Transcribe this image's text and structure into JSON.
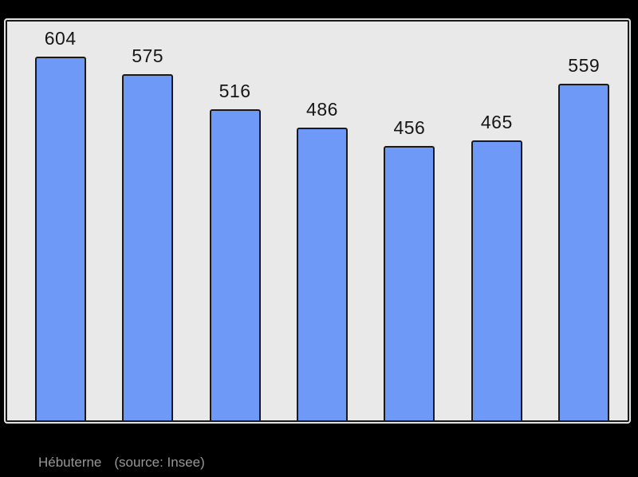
{
  "caption": {
    "title": "Hébuterne",
    "source": "(source: Insee)"
  },
  "colors": {
    "page_background": "#000000",
    "panel_background": "#e9e9e9",
    "panel_border": "#191919",
    "bar_fill": "#6f99f7",
    "bar_border": "#1a1a1a",
    "value_label": "#161616",
    "caption_text": "#979797"
  },
  "chart_data": {
    "type": "bar",
    "values": [
      604,
      575,
      516,
      486,
      456,
      465,
      559
    ],
    "data_labels": [
      "604",
      "575",
      "516",
      "486",
      "456",
      "465",
      "559"
    ],
    "title": "Hébuterne",
    "annotation": "(source: Insee)",
    "xlabel": "",
    "ylabel": "",
    "axis_tick_labels_visible": false,
    "grid": false,
    "legend": false,
    "bar_count": 7
  }
}
